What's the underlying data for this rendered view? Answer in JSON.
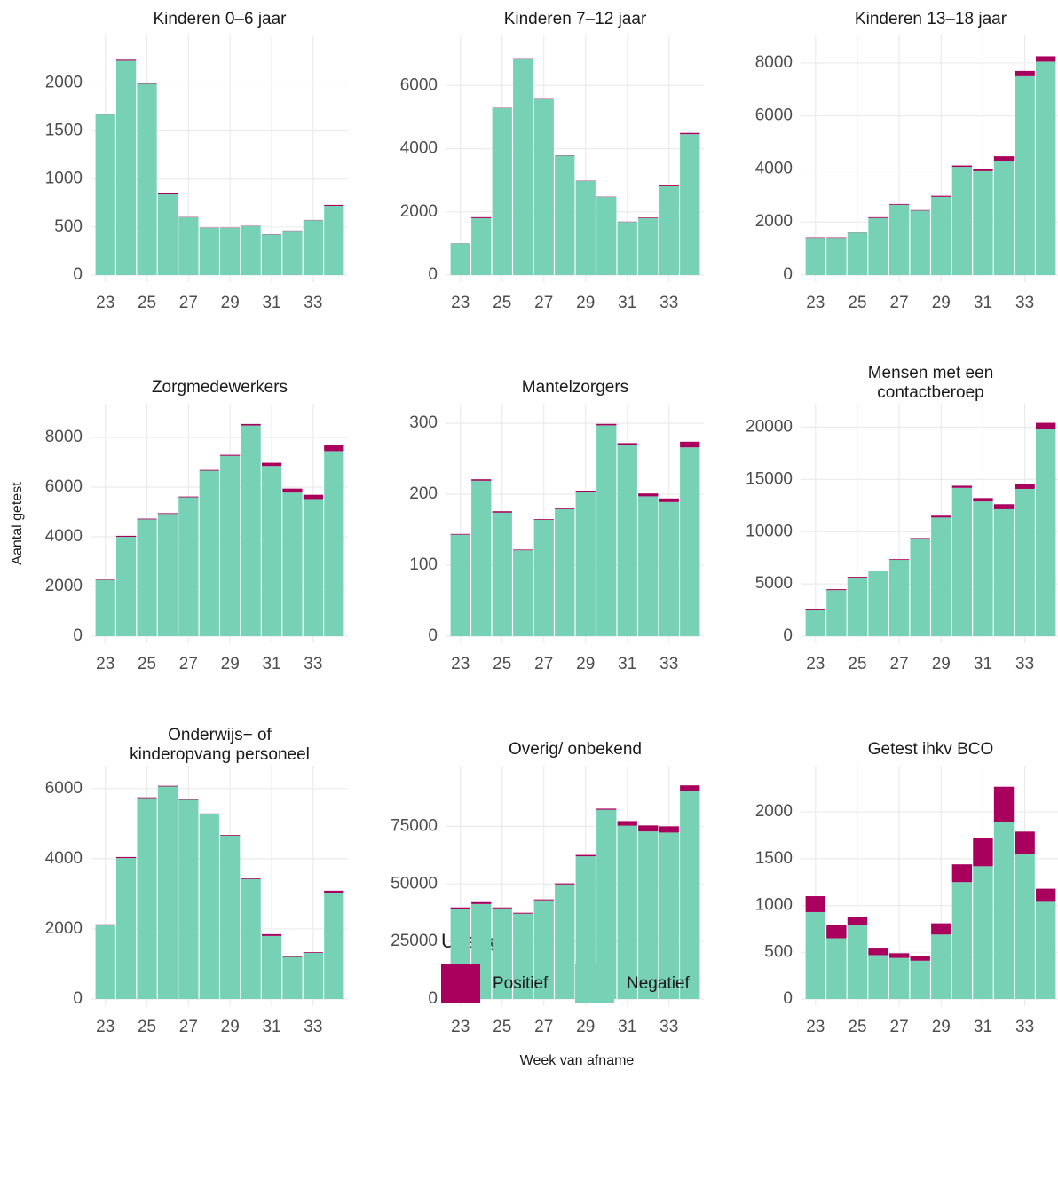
{
  "chart_data": [
    {
      "type": "bar",
      "title": "Kinderen 0–6 jaar",
      "x": [
        23,
        24,
        25,
        26,
        27,
        28,
        29,
        30,
        31,
        32,
        33,
        34
      ],
      "xlim": [
        22.5,
        34.5
      ],
      "xticks": [
        23,
        25,
        27,
        29,
        31,
        33
      ],
      "ylim": [
        0,
        2400
      ],
      "yticks": [
        0,
        500,
        1000,
        1500,
        2000
      ],
      "grid": true,
      "series": [
        {
          "name": "Positief",
          "color": "#a8005c",
          "values": [
            10,
            10,
            5,
            10,
            3,
            3,
            3,
            3,
            3,
            3,
            3,
            10
          ]
        },
        {
          "name": "Negatief",
          "color": "#76d1b5",
          "values": [
            1670,
            2230,
            1990,
            840,
            600,
            490,
            490,
            510,
            420,
            460,
            570,
            720
          ]
        }
      ]
    },
    {
      "type": "bar",
      "title": "Kinderen 7–12 jaar",
      "x": [
        23,
        24,
        25,
        26,
        27,
        28,
        29,
        30,
        31,
        32,
        33,
        34
      ],
      "xlim": [
        22.5,
        34.5
      ],
      "xticks": [
        23,
        25,
        27,
        29,
        31,
        33
      ],
      "ylim": [
        0,
        7300
      ],
      "yticks": [
        0,
        2000,
        4000,
        6000
      ],
      "grid": true,
      "series": [
        {
          "name": "Positief",
          "color": "#a8005c",
          "values": [
            5,
            30,
            10,
            10,
            10,
            10,
            10,
            10,
            10,
            20,
            30,
            40
          ]
        },
        {
          "name": "Negatief",
          "color": "#76d1b5",
          "values": [
            1000,
            1800,
            5280,
            6850,
            5560,
            3780,
            2980,
            2470,
            1680,
            1800,
            2810,
            4460
          ]
        }
      ]
    },
    {
      "type": "bar",
      "title": "Kinderen 13–18 jaar",
      "x": [
        23,
        24,
        25,
        26,
        27,
        28,
        29,
        30,
        31,
        32,
        33,
        34
      ],
      "xlim": [
        22.5,
        34.5
      ],
      "xticks": [
        23,
        25,
        27,
        29,
        31,
        33
      ],
      "ylim": [
        0,
        8700
      ],
      "yticks": [
        0,
        2000,
        4000,
        6000,
        8000
      ],
      "grid": true,
      "series": [
        {
          "name": "Positief",
          "color": "#a8005c",
          "values": [
            20,
            20,
            20,
            30,
            30,
            20,
            40,
            50,
            80,
            180,
            200,
            200
          ]
        },
        {
          "name": "Negatief",
          "color": "#76d1b5",
          "values": [
            1400,
            1400,
            1600,
            2150,
            2650,
            2430,
            2950,
            4080,
            3920,
            4300,
            7500,
            8050
          ]
        }
      ]
    },
    {
      "type": "bar",
      "title": "Zorgmedewerkers",
      "x": [
        23,
        24,
        25,
        26,
        27,
        28,
        29,
        30,
        31,
        32,
        33,
        34
      ],
      "xlim": [
        22.5,
        34.5
      ],
      "xticks": [
        23,
        25,
        27,
        29,
        31,
        33
      ],
      "ylim": [
        0,
        9000
      ],
      "yticks": [
        0,
        2000,
        4000,
        6000,
        8000
      ],
      "grid": true,
      "series": [
        {
          "name": "Positief",
          "color": "#a8005c",
          "values": [
            20,
            40,
            30,
            30,
            30,
            30,
            40,
            60,
            130,
            160,
            170,
            240
          ]
        },
        {
          "name": "Negatief",
          "color": "#76d1b5",
          "values": [
            2260,
            4000,
            4700,
            4920,
            5590,
            6660,
            7260,
            8480,
            6850,
            5780,
            5520,
            7450
          ]
        }
      ]
    },
    {
      "type": "bar",
      "title": "Mantelzorgers",
      "x": [
        23,
        24,
        25,
        26,
        27,
        28,
        29,
        30,
        31,
        32,
        33,
        34
      ],
      "xlim": [
        22.5,
        34.5
      ],
      "xticks": [
        23,
        25,
        27,
        29,
        31,
        33
      ],
      "ylim": [
        0,
        315
      ],
      "yticks": [
        0,
        100,
        200,
        300
      ],
      "grid": true,
      "series": [
        {
          "name": "Positief",
          "color": "#a8005c",
          "values": [
            1,
            2,
            2,
            1,
            1,
            1,
            2,
            2,
            2,
            4,
            5,
            8
          ]
        },
        {
          "name": "Negatief",
          "color": "#76d1b5",
          "values": [
            143,
            219,
            174,
            121,
            164,
            179,
            203,
            297,
            270,
            197,
            189,
            266
          ]
        }
      ]
    },
    {
      "type": "bar",
      "title": [
        "Mensen met een",
        "contactberoep"
      ],
      "x": [
        23,
        24,
        25,
        26,
        27,
        28,
        29,
        30,
        31,
        32,
        33,
        34
      ],
      "xlim": [
        22.5,
        34.5
      ],
      "xticks": [
        23,
        25,
        27,
        29,
        31,
        33
      ],
      "ylim": [
        0,
        21400
      ],
      "yticks": [
        0,
        5000,
        10000,
        15000,
        20000
      ],
      "grid": true,
      "series": [
        {
          "name": "Positief",
          "color": "#a8005c",
          "values": [
            80,
            90,
            100,
            70,
            70,
            50,
            180,
            200,
            320,
            480,
            480,
            570
          ]
        },
        {
          "name": "Negatief",
          "color": "#76d1b5",
          "values": [
            2550,
            4400,
            5580,
            6200,
            7300,
            9350,
            11350,
            14200,
            12900,
            12150,
            14100,
            19850
          ]
        }
      ]
    },
    {
      "type": "bar",
      "title": [
        "Onderwijs− of",
        "kinderopvang personeel"
      ],
      "x": [
        23,
        24,
        25,
        26,
        27,
        28,
        29,
        30,
        31,
        32,
        33,
        34
      ],
      "xlim": [
        22.5,
        34.5
      ],
      "xticks": [
        23,
        25,
        27,
        29,
        31,
        33
      ],
      "ylim": [
        0,
        6400
      ],
      "yticks": [
        0,
        2000,
        4000,
        6000
      ],
      "grid": true,
      "series": [
        {
          "name": "Positief",
          "color": "#a8005c",
          "values": [
            30,
            30,
            20,
            20,
            20,
            20,
            20,
            20,
            50,
            15,
            20,
            60
          ]
        },
        {
          "name": "Negatief",
          "color": "#76d1b5",
          "values": [
            2100,
            4020,
            5730,
            6060,
            5680,
            5270,
            4660,
            3420,
            1800,
            1200,
            1320,
            3030
          ]
        }
      ]
    },
    {
      "type": "bar",
      "title": "Overig/ onbekend",
      "x": [
        23,
        24,
        25,
        26,
        27,
        28,
        29,
        30,
        31,
        32,
        33,
        34
      ],
      "xlim": [
        22.5,
        34.5
      ],
      "xticks": [
        23,
        25,
        27,
        29,
        31,
        33
      ],
      "ylim": [
        0,
        97500
      ],
      "yticks": [
        0,
        25000,
        50000,
        75000
      ],
      "grid": true,
      "series": [
        {
          "name": "Positief",
          "color": "#a8005c",
          "values": [
            800,
            800,
            400,
            400,
            400,
            450,
            600,
            500,
            2000,
            2600,
            2700,
            2300
          ]
        },
        {
          "name": "Negatief",
          "color": "#76d1b5",
          "values": [
            39000,
            41300,
            39400,
            37100,
            42900,
            49800,
            62000,
            82200,
            75300,
            72800,
            72300,
            90500
          ]
        }
      ]
    },
    {
      "type": "bar",
      "title": "Getest ihkv BCO",
      "x": [
        23,
        24,
        25,
        26,
        27,
        28,
        29,
        30,
        31,
        32,
        33,
        34
      ],
      "xlim": [
        22.5,
        34.5
      ],
      "xticks": [
        23,
        25,
        27,
        29,
        31,
        33
      ],
      "ylim": [
        0,
        2400
      ],
      "yticks": [
        0,
        500,
        1000,
        1500,
        2000
      ],
      "grid": true,
      "series": [
        {
          "name": "Positief",
          "color": "#a8005c",
          "values": [
            170,
            140,
            90,
            70,
            50,
            50,
            120,
            190,
            300,
            380,
            240,
            140
          ]
        },
        {
          "name": "Negatief",
          "color": "#76d1b5",
          "values": [
            930,
            650,
            790,
            470,
            440,
            410,
            690,
            1250,
            1420,
            1890,
            1550,
            1040
          ]
        }
      ]
    }
  ],
  "x_label": "Week van afname",
  "y_label": "Aantal getest",
  "legend_title": "Uitslag"
}
